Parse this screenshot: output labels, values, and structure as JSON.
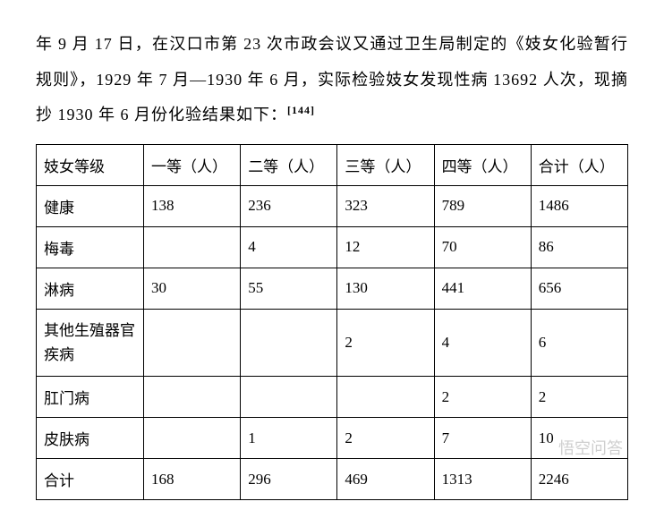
{
  "paragraph": {
    "text": "年 9 月 17 日，在汉口市第 23 次市政会议又通过卫生局制定的《妓女化验暂行规则》，1929 年 7 月—1930 年 6 月，实际检验妓女发现性病 13692 人次，现摘抄 1930 年 6 月份化验结果如下：",
    "citation": "[144]"
  },
  "table": {
    "columns": [
      "妓女等级",
      "一等（人）",
      "二等（人）",
      "三等（人）",
      "四等（人）",
      "合计（人）"
    ],
    "rows": [
      {
        "label": "健康",
        "cells": [
          "138",
          "236",
          "323",
          "789",
          "1486"
        ]
      },
      {
        "label": "梅毒",
        "cells": [
          "",
          "4",
          "12",
          "70",
          "86"
        ]
      },
      {
        "label": "淋病",
        "cells": [
          "30",
          "55",
          "130",
          "441",
          "656"
        ]
      },
      {
        "label": "其他生殖器官疾病",
        "cells": [
          "",
          "",
          "2",
          "4",
          "6"
        ],
        "multiline": true
      },
      {
        "label": "肛门病",
        "cells": [
          "",
          "",
          "",
          "2",
          "2"
        ]
      },
      {
        "label": "皮肤病",
        "cells": [
          "",
          "1",
          "2",
          "7",
          "10"
        ]
      },
      {
        "label": "合计",
        "cells": [
          "168",
          "296",
          "469",
          "1313",
          "2246"
        ]
      }
    ],
    "border_color": "#000000",
    "background_color": "#ffffff",
    "font_size_pt": 13,
    "col_widths_pct": [
      18,
      16,
      16,
      16,
      16,
      18
    ]
  },
  "watermark": "悟空问答"
}
